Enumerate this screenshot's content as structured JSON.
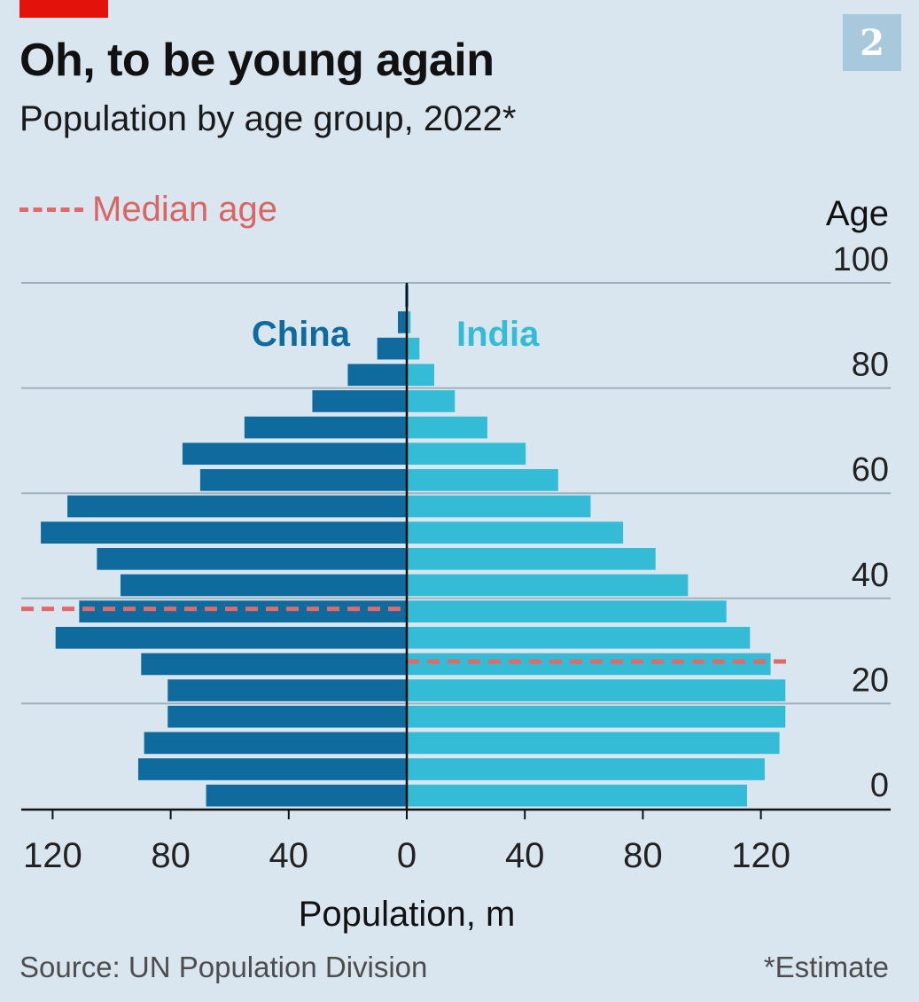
{
  "header": {
    "title": "Oh, to be young again",
    "subtitle": "Population by age group, 2022*",
    "chart_number": "2"
  },
  "legend": {
    "median_label": "Median age"
  },
  "footer": {
    "source": "Source: UN Population Division",
    "footnote": "*Estimate"
  },
  "colors": {
    "china": "#0f6a9e",
    "india": "#34bcd6",
    "median": "#e06a6a",
    "grid": "#9fb0bd",
    "background": "#d9e6ef"
  },
  "chart_data": {
    "type": "bar",
    "orientation": "horizontal",
    "layout": "population-pyramid",
    "title": "Oh, to be young again",
    "subtitle": "Population by age group, 2022*",
    "xlabel": "Population, m",
    "ylabel": "Age",
    "xlim": [
      -130,
      130
    ],
    "ylim": [
      0,
      100
    ],
    "x_ticks": [
      {
        "value": -120,
        "label": "120"
      },
      {
        "value": -80,
        "label": "80"
      },
      {
        "value": -40,
        "label": "40"
      },
      {
        "value": 0,
        "label": "0"
      },
      {
        "value": 40,
        "label": "40"
      },
      {
        "value": 80,
        "label": "80"
      },
      {
        "value": 120,
        "label": "120"
      }
    ],
    "y_ticks": [
      "0",
      "20",
      "40",
      "60",
      "80",
      "100"
    ],
    "grid": true,
    "categories": [
      "0-4",
      "5-9",
      "10-14",
      "15-19",
      "20-24",
      "25-29",
      "30-34",
      "35-39",
      "40-44",
      "45-49",
      "50-54",
      "55-59",
      "60-64",
      "65-69",
      "70-74",
      "75-79",
      "80-84",
      "85-89",
      "90-94",
      "95-99"
    ],
    "series": [
      {
        "name": "China",
        "values": [
          68,
          91,
          89,
          81,
          81,
          90,
          119,
          111,
          97,
          105,
          124,
          115,
          70,
          76,
          55,
          32,
          20,
          10,
          3,
          0.5
        ]
      },
      {
        "name": "India",
        "values": [
          115,
          121,
          126,
          128,
          128,
          123,
          116,
          108,
          95,
          84,
          73,
          62,
          51,
          40,
          27,
          16,
          9,
          4,
          1,
          0.3
        ]
      }
    ],
    "median_age": {
      "China": 38,
      "India": 28
    },
    "legend": [
      "Median age"
    ]
  }
}
